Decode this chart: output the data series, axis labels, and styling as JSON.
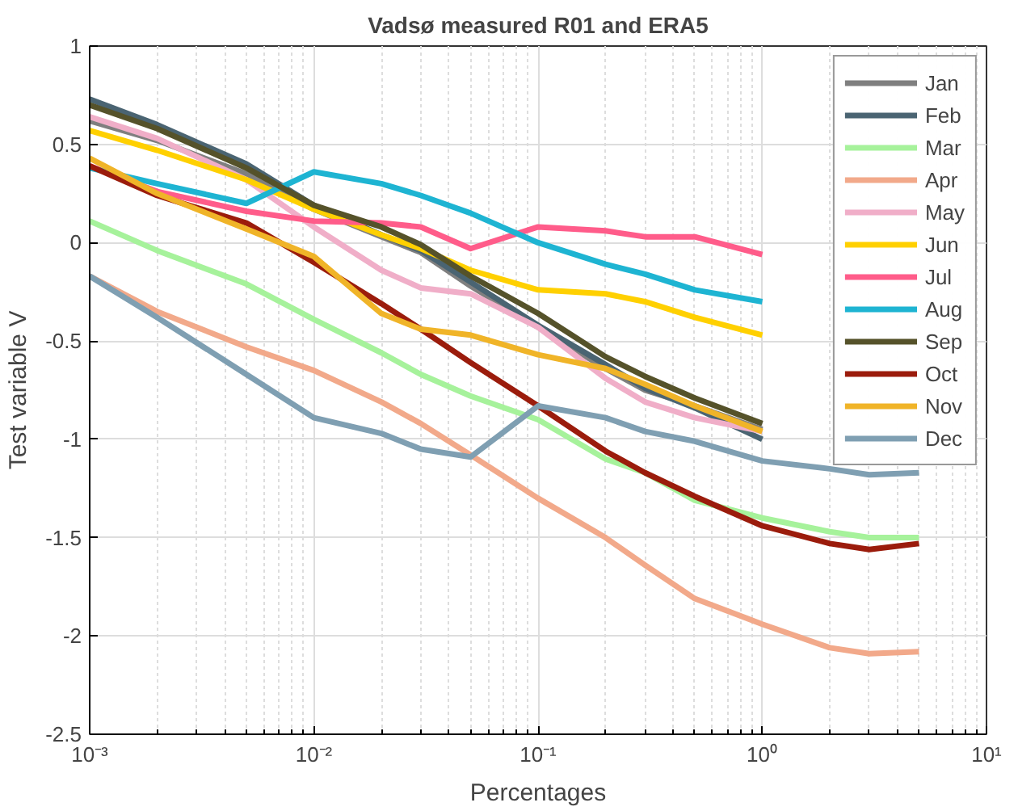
{
  "chart_data": {
    "type": "line",
    "title": "Vadsø measured R01 and ERA5",
    "xlabel": "Percentages",
    "ylabel": "Test variable V",
    "log": "x",
    "x": [
      0.001,
      0.002,
      0.005,
      0.01,
      0.02,
      0.03,
      0.05,
      0.1,
      0.2,
      0.3,
      0.5,
      1,
      2,
      3,
      5
    ],
    "xlim": [
      0.001,
      10
    ],
    "xticks": [
      {
        "value": 0.001,
        "label": "10⁻³"
      },
      {
        "value": 0.01,
        "label": "10⁻²"
      },
      {
        "value": 0.1,
        "label": "10⁻¹"
      },
      {
        "value": 1,
        "label": "10⁰"
      },
      {
        "value": 10,
        "label": "10¹"
      }
    ],
    "ylim": [
      -2.5,
      1
    ],
    "yticks": [
      -2.5,
      -2,
      -1.5,
      -1,
      -0.5,
      0,
      0.5,
      1
    ],
    "grid": true,
    "legend": "top right",
    "marker": "none",
    "line_style": "solid",
    "series": [
      {
        "name": "Jan",
        "color": "#7f7f7f",
        "values": [
          0.62,
          0.52,
          0.35,
          0.17,
          0.03,
          -0.05,
          -0.22,
          -0.43,
          -0.64,
          -0.75,
          -0.83,
          -0.95,
          null,
          null,
          null
        ]
      },
      {
        "name": "Feb",
        "color": "#4a6472",
        "values": [
          0.73,
          0.6,
          0.4,
          0.19,
          0.04,
          -0.04,
          -0.2,
          -0.42,
          -0.62,
          -0.74,
          -0.84,
          -1.0,
          null,
          null,
          null
        ]
      },
      {
        "name": "Mar",
        "color": "#a6f29b",
        "values": [
          0.11,
          -0.04,
          -0.21,
          -0.39,
          -0.56,
          -0.67,
          -0.78,
          -0.9,
          -1.1,
          -1.17,
          -1.31,
          -1.4,
          -1.47,
          -1.5,
          -1.5
        ]
      },
      {
        "name": "Apr",
        "color": "#f2a98a",
        "values": [
          -0.17,
          -0.35,
          -0.53,
          -0.65,
          -0.81,
          -0.92,
          -1.08,
          -1.3,
          -1.5,
          -1.64,
          -1.81,
          -1.94,
          -2.06,
          -2.09,
          -2.08
        ]
      },
      {
        "name": "May",
        "color": "#f0aec8",
        "values": [
          0.64,
          0.53,
          0.32,
          0.08,
          -0.14,
          -0.23,
          -0.26,
          -0.43,
          -0.69,
          -0.81,
          -0.89,
          -0.96,
          null,
          null,
          null
        ]
      },
      {
        "name": "Jun",
        "color": "#ffd000",
        "values": [
          0.57,
          0.47,
          0.32,
          0.17,
          0.04,
          -0.03,
          -0.14,
          -0.24,
          -0.26,
          -0.3,
          -0.38,
          -0.47,
          null,
          null,
          null
        ]
      },
      {
        "name": "Jul",
        "color": "#ff5c8a",
        "values": [
          0.39,
          0.26,
          0.16,
          0.11,
          0.1,
          0.08,
          -0.03,
          0.08,
          0.06,
          0.03,
          0.03,
          -0.06,
          null,
          null,
          null
        ]
      },
      {
        "name": "Aug",
        "color": "#1eb4d2",
        "values": [
          0.38,
          0.3,
          0.2,
          0.36,
          0.3,
          0.24,
          0.15,
          0.0,
          -0.11,
          -0.16,
          -0.24,
          -0.3,
          null,
          null,
          null
        ]
      },
      {
        "name": "Sep",
        "color": "#55522a",
        "values": [
          0.7,
          0.58,
          0.38,
          0.19,
          0.08,
          -0.01,
          -0.17,
          -0.36,
          -0.58,
          -0.68,
          -0.79,
          -0.92,
          null,
          null,
          null
        ]
      },
      {
        "name": "Oct",
        "color": "#9b1c0c",
        "values": [
          0.39,
          0.24,
          0.1,
          -0.1,
          -0.31,
          -0.44,
          -0.61,
          -0.83,
          -1.06,
          -1.17,
          -1.29,
          -1.44,
          -1.53,
          -1.56,
          -1.53
        ]
      },
      {
        "name": "Nov",
        "color": "#f0b428",
        "values": [
          0.43,
          0.25,
          0.07,
          -0.07,
          -0.36,
          -0.44,
          -0.47,
          -0.57,
          -0.64,
          -0.72,
          -0.83,
          -0.96,
          null,
          null,
          null
        ]
      },
      {
        "name": "Dec",
        "color": "#7f9fb2",
        "values": [
          -0.17,
          -0.38,
          -0.67,
          -0.89,
          -0.97,
          -1.05,
          -1.09,
          -0.83,
          -0.89,
          -0.96,
          -1.01,
          -1.11,
          -1.15,
          -1.18,
          -1.17
        ]
      }
    ]
  }
}
